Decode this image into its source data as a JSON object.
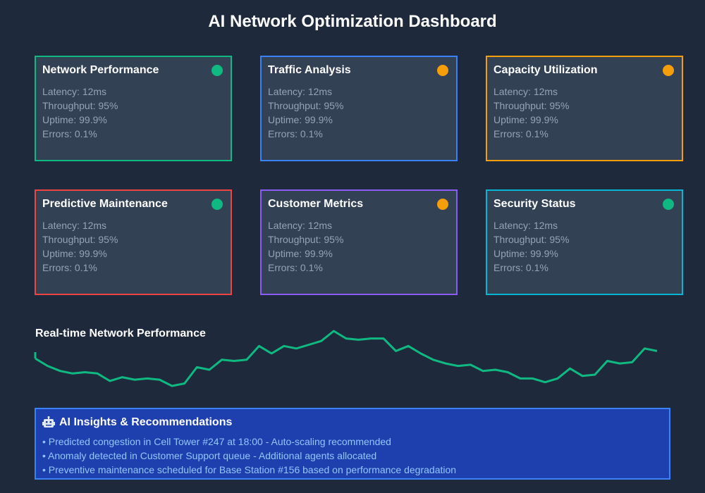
{
  "page": {
    "title": "AI Network Optimization Dashboard"
  },
  "cards": [
    {
      "title": "Network Performance",
      "status_color": "#10b981",
      "border_color": "#10b981",
      "metrics": {
        "latency": "Latency: 12ms",
        "throughput": "Throughput: 95%",
        "uptime": "Uptime: 99.9%",
        "errors": "Errors: 0.1%"
      }
    },
    {
      "title": "Traffic Analysis",
      "status_color": "#f59e0b",
      "border_color": "#3b82f6",
      "metrics": {
        "latency": "Latency: 12ms",
        "throughput": "Throughput: 95%",
        "uptime": "Uptime: 99.9%",
        "errors": "Errors: 0.1%"
      }
    },
    {
      "title": "Capacity Utilization",
      "status_color": "#f59e0b",
      "border_color": "#f59e0b",
      "metrics": {
        "latency": "Latency: 12ms",
        "throughput": "Throughput: 95%",
        "uptime": "Uptime: 99.9%",
        "errors": "Errors: 0.1%"
      }
    },
    {
      "title": "Predictive Maintenance",
      "status_color": "#10b981",
      "border_color": "#ef4444",
      "metrics": {
        "latency": "Latency: 12ms",
        "throughput": "Throughput: 95%",
        "uptime": "Uptime: 99.9%",
        "errors": "Errors: 0.1%"
      }
    },
    {
      "title": "Customer Metrics",
      "status_color": "#f59e0b",
      "border_color": "#8b5cf6",
      "metrics": {
        "latency": "Latency: 12ms",
        "throughput": "Throughput: 95%",
        "uptime": "Uptime: 99.9%",
        "errors": "Errors: 0.1%"
      }
    },
    {
      "title": "Security Status",
      "status_color": "#10b981",
      "border_color": "#06b6d4",
      "metrics": {
        "latency": "Latency: 12ms",
        "throughput": "Throughput: 95%",
        "uptime": "Uptime: 99.9%",
        "errors": "Errors: 0.1%"
      }
    }
  ],
  "performance": {
    "title": "Real-time Network Performance",
    "line_color": "#10b981"
  },
  "chart_data": {
    "type": "line",
    "title": "Real-time Network Performance",
    "xlabel": "",
    "ylabel": "",
    "grid": false,
    "series": [
      {
        "values": [
          52,
          46,
          42,
          40,
          41,
          40,
          34,
          37,
          35,
          36,
          35,
          30,
          32,
          45,
          43,
          51,
          50,
          51,
          62,
          56,
          62,
          60,
          63,
          66,
          74,
          68,
          67,
          68,
          68,
          58,
          62,
          56,
          51,
          48,
          46,
          47,
          42,
          43,
          41,
          36,
          36,
          33,
          36,
          44,
          38,
          39,
          50,
          48,
          49,
          60,
          58
        ]
      }
    ],
    "ylim": [
      0,
      100
    ]
  },
  "insights": {
    "icon": "robot-icon",
    "title": "AI Insights & Recommendations",
    "items": [
      "• Predicted congestion in Cell Tower #247 at 18:00 - Auto-scaling recommended",
      "• Anomaly detected in Customer Support queue - Additional agents allocated",
      "• Preventive maintenance scheduled for Base Station #156 based on performance degradation"
    ]
  }
}
